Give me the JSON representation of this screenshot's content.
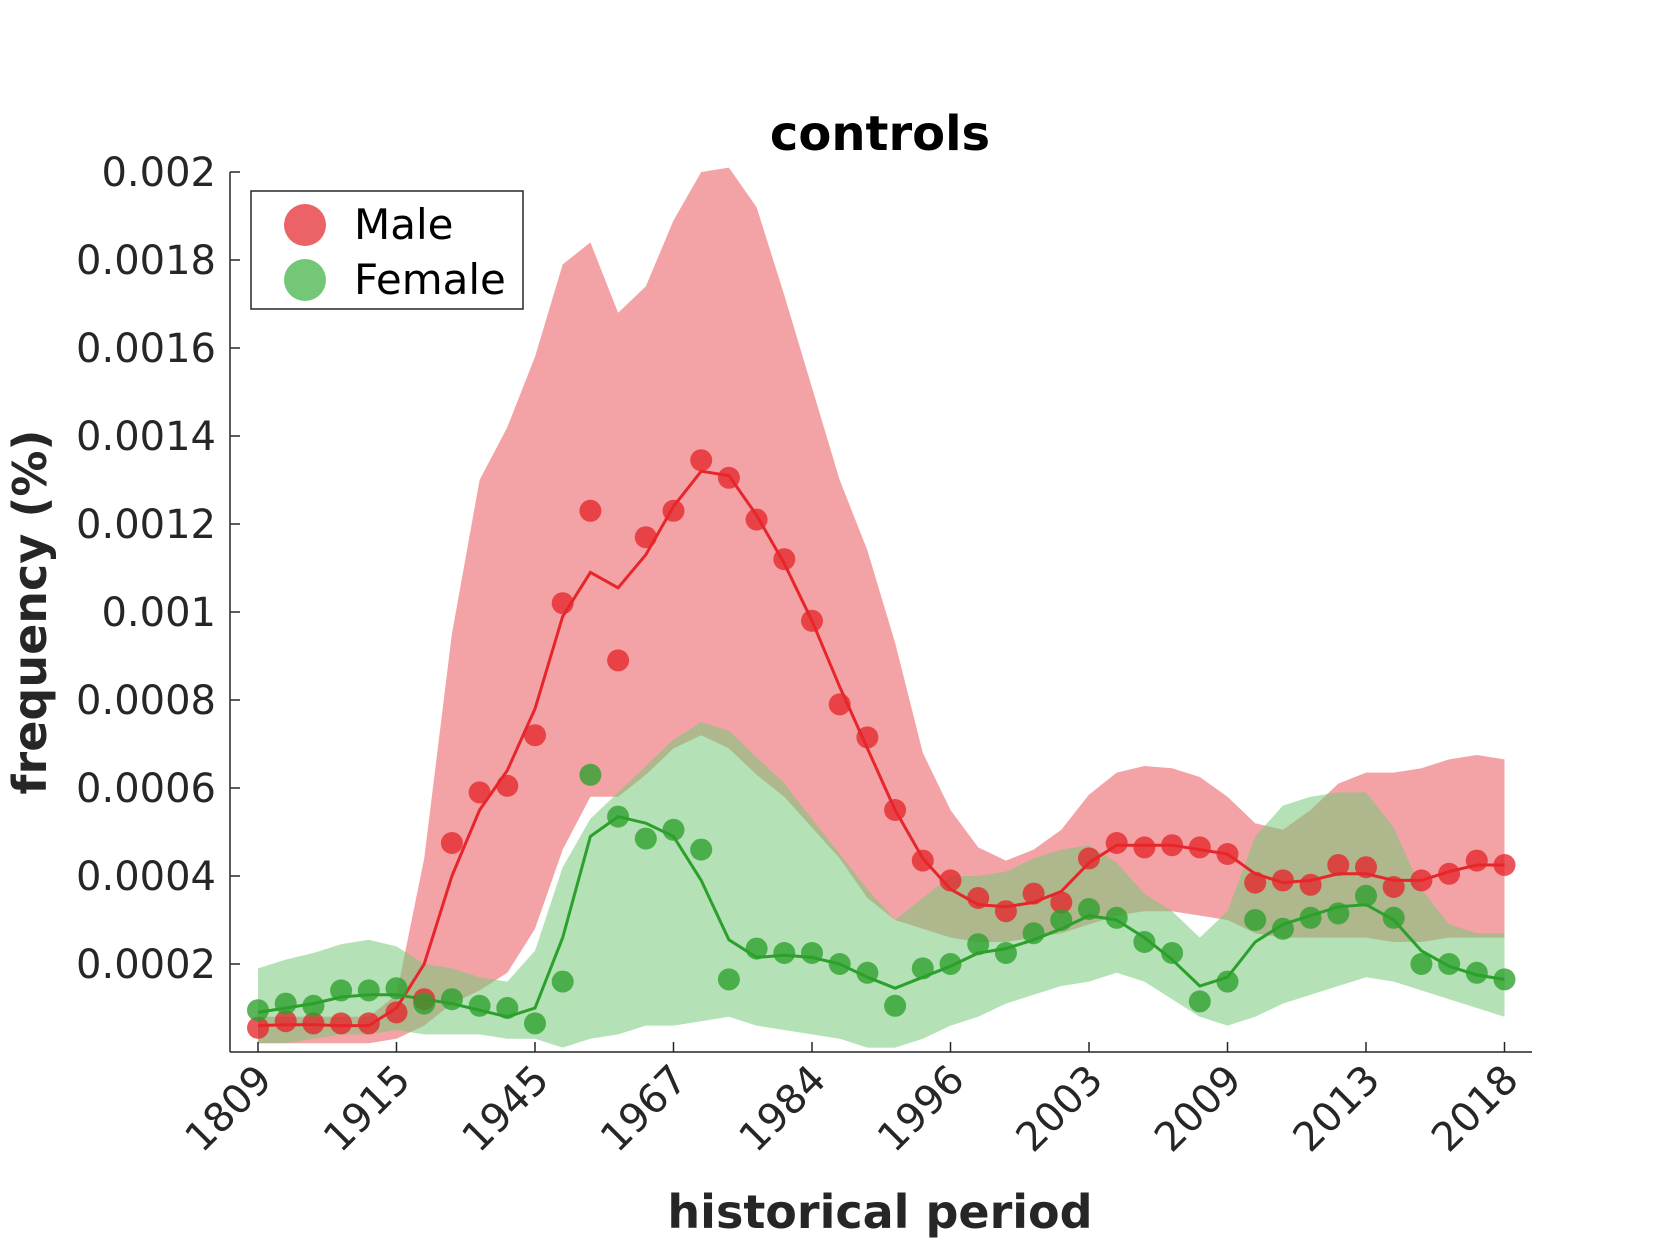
{
  "chart_data": {
    "type": "line",
    "title": "controls",
    "xlabel": "historical period",
    "ylabel": "frequency (%)",
    "ylim": [
      0,
      0.002
    ],
    "yticks": [
      0.0002,
      0.0004,
      0.0006,
      0.0008,
      0.001,
      0.0012,
      0.0014,
      0.0016,
      0.0018,
      0.002
    ],
    "ytick_labels": [
      "0.0002",
      "0.0004",
      "0.0006",
      "0.0008",
      "0.001",
      "0.0012",
      "0.0014",
      "0.0016",
      "0.0018",
      "0.002"
    ],
    "xtick_positions": [
      0,
      5,
      10,
      15,
      20,
      25,
      30,
      35,
      40,
      45
    ],
    "xtick_labels": [
      "1809",
      "1915",
      "1945",
      "1967",
      "1984",
      "1996",
      "2003",
      "2009",
      "2013",
      "2018"
    ],
    "legend_position": "top-left",
    "grid": false,
    "series": [
      {
        "name": "Male",
        "color": "#e6262b",
        "band_color": "#e8474c",
        "points": [
          5.5e-05,
          7e-05,
          6.5e-05,
          6.5e-05,
          6.5e-05,
          9e-05,
          0.00012,
          0.000475,
          0.00059,
          0.000605,
          0.00072,
          0.00102,
          0.00123,
          0.00089,
          0.00117,
          0.00123,
          0.001345,
          0.001305,
          0.00121,
          0.00112,
          0.00098,
          0.00079,
          0.000715,
          0.00055,
          0.000435,
          0.00039,
          0.00035,
          0.00032,
          0.00036,
          0.00034,
          0.00044,
          0.000475,
          0.000465,
          0.00047,
          0.000465,
          0.00045,
          0.000385,
          0.00039,
          0.00038,
          0.000425,
          0.00042,
          0.000375,
          0.00039,
          0.000405,
          0.000435,
          0.000425
        ],
        "smooth": [
          6e-05,
          6.2e-05,
          6.2e-05,
          6e-05,
          6e-05,
          0.0001,
          0.0002,
          0.0004,
          0.00055,
          0.00064,
          0.00078,
          0.00099,
          0.00109,
          0.001055,
          0.00113,
          0.00124,
          0.00132,
          0.00131,
          0.00122,
          0.00111,
          0.00098,
          0.00083,
          0.00069,
          0.00055,
          0.00044,
          0.00037,
          0.000335,
          0.00033,
          0.00034,
          0.000365,
          0.00043,
          0.00047,
          0.00047,
          0.00047,
          0.00046,
          0.00045,
          0.000405,
          0.000385,
          0.00039,
          0.000405,
          0.000405,
          0.00039,
          0.00039,
          0.00041,
          0.000425,
          0.000425
        ],
        "band_upper": [
          8e-05,
          8e-05,
          8e-05,
          8e-05,
          8e-05,
          0.00013,
          0.00044,
          0.00095,
          0.0013,
          0.00142,
          0.00158,
          0.00179,
          0.00184,
          0.00168,
          0.00174,
          0.00189,
          0.002,
          0.00201,
          0.00192,
          0.00172,
          0.00151,
          0.0013,
          0.00114,
          0.00093,
          0.00068,
          0.00055,
          0.000465,
          0.000435,
          0.00046,
          0.000505,
          0.000585,
          0.000635,
          0.00065,
          0.000645,
          0.000625,
          0.00058,
          0.00052,
          0.000505,
          0.00055,
          0.00061,
          0.000635,
          0.000635,
          0.000645,
          0.000665,
          0.000675,
          0.000665
        ],
        "band_lower": [
          2e-05,
          2e-05,
          2e-05,
          2e-05,
          2e-05,
          3e-05,
          6e-05,
          0.00011,
          0.00014,
          0.00018,
          0.00028,
          0.00046,
          0.00058,
          0.00058,
          0.00063,
          0.00069,
          0.00072,
          0.00069,
          0.00063,
          0.00058,
          0.00051,
          0.00044,
          0.00035,
          0.0003,
          0.00028,
          0.00026,
          0.00025,
          0.00025,
          0.00026,
          0.00027,
          0.00029,
          0.00031,
          0.00032,
          0.00032,
          0.00031,
          0.0003,
          0.00027,
          0.00026,
          0.00026,
          0.00026,
          0.00026,
          0.00025,
          0.00025,
          0.00026,
          0.00026,
          0.00026
        ]
      },
      {
        "name": "Female",
        "color": "#2ca02c",
        "band_color": "#77c978",
        "points": [
          9.5e-05,
          0.00011,
          0.000105,
          0.00014,
          0.00014,
          0.000145,
          0.00011,
          0.00012,
          0.000105,
          0.0001,
          6.5e-05,
          0.00016,
          0.00063,
          0.000535,
          0.000485,
          0.000505,
          0.00046,
          0.000165,
          0.000235,
          0.000225,
          0.000225,
          0.0002,
          0.00018,
          0.000105,
          0.00019,
          0.0002,
          0.000245,
          0.000225,
          0.00027,
          0.0003,
          0.000325,
          0.000305,
          0.00025,
          0.000225,
          0.000115,
          0.00016,
          0.0003,
          0.00028,
          0.000305,
          0.000315,
          0.000355,
          0.000305,
          0.0002,
          0.0002,
          0.00018,
          0.000165
        ],
        "smooth": [
          9e-05,
          0.0001,
          0.00011,
          0.000125,
          0.00013,
          0.00013,
          0.00012,
          0.00011,
          9.5e-05,
          8e-05,
          0.0001,
          0.00026,
          0.00049,
          0.000535,
          0.00052,
          0.00049,
          0.00039,
          0.000255,
          0.000215,
          0.00022,
          0.000215,
          0.0002,
          0.00017,
          0.000145,
          0.00017,
          0.000195,
          0.000225,
          0.000235,
          0.000255,
          0.00028,
          0.00031,
          0.0003,
          0.00026,
          0.00021,
          0.00015,
          0.00017,
          0.00025,
          0.00029,
          0.00031,
          0.00033,
          0.000335,
          0.0003,
          0.00023,
          0.000195,
          0.000175,
          0.000165
        ],
        "band_upper": [
          0.00019,
          0.00021,
          0.000225,
          0.000245,
          0.000255,
          0.00024,
          0.0002,
          0.00019,
          0.00017,
          0.00016,
          0.00023,
          0.00042,
          0.00053,
          0.00059,
          0.00065,
          0.00071,
          0.00075,
          0.00073,
          0.00067,
          0.00061,
          0.00053,
          0.00045,
          0.00037,
          0.0003,
          0.00035,
          0.0004,
          0.0004,
          0.00041,
          0.00044,
          0.00046,
          0.00047,
          0.00043,
          0.00036,
          0.00032,
          0.00026,
          0.00032,
          0.00049,
          0.00056,
          0.00058,
          0.00059,
          0.00059,
          0.00051,
          0.00037,
          0.00029,
          0.00027,
          0.00027
        ],
        "band_lower": [
          2e-05,
          2e-05,
          3e-05,
          4e-05,
          4e-05,
          5e-05,
          4e-05,
          4e-05,
          4e-05,
          3e-05,
          3e-05,
          1e-05,
          3e-05,
          4e-05,
          6e-05,
          6e-05,
          7e-05,
          8e-05,
          6e-05,
          5e-05,
          4e-05,
          3e-05,
          1e-05,
          1e-05,
          3e-05,
          6e-05,
          8e-05,
          0.00011,
          0.00013,
          0.00015,
          0.00016,
          0.00018,
          0.00016,
          0.00012,
          8e-05,
          6e-05,
          8e-05,
          0.00011,
          0.00013,
          0.00015,
          0.00017,
          0.00016,
          0.00014,
          0.00012,
          0.0001,
          8e-05
        ]
      }
    ]
  }
}
